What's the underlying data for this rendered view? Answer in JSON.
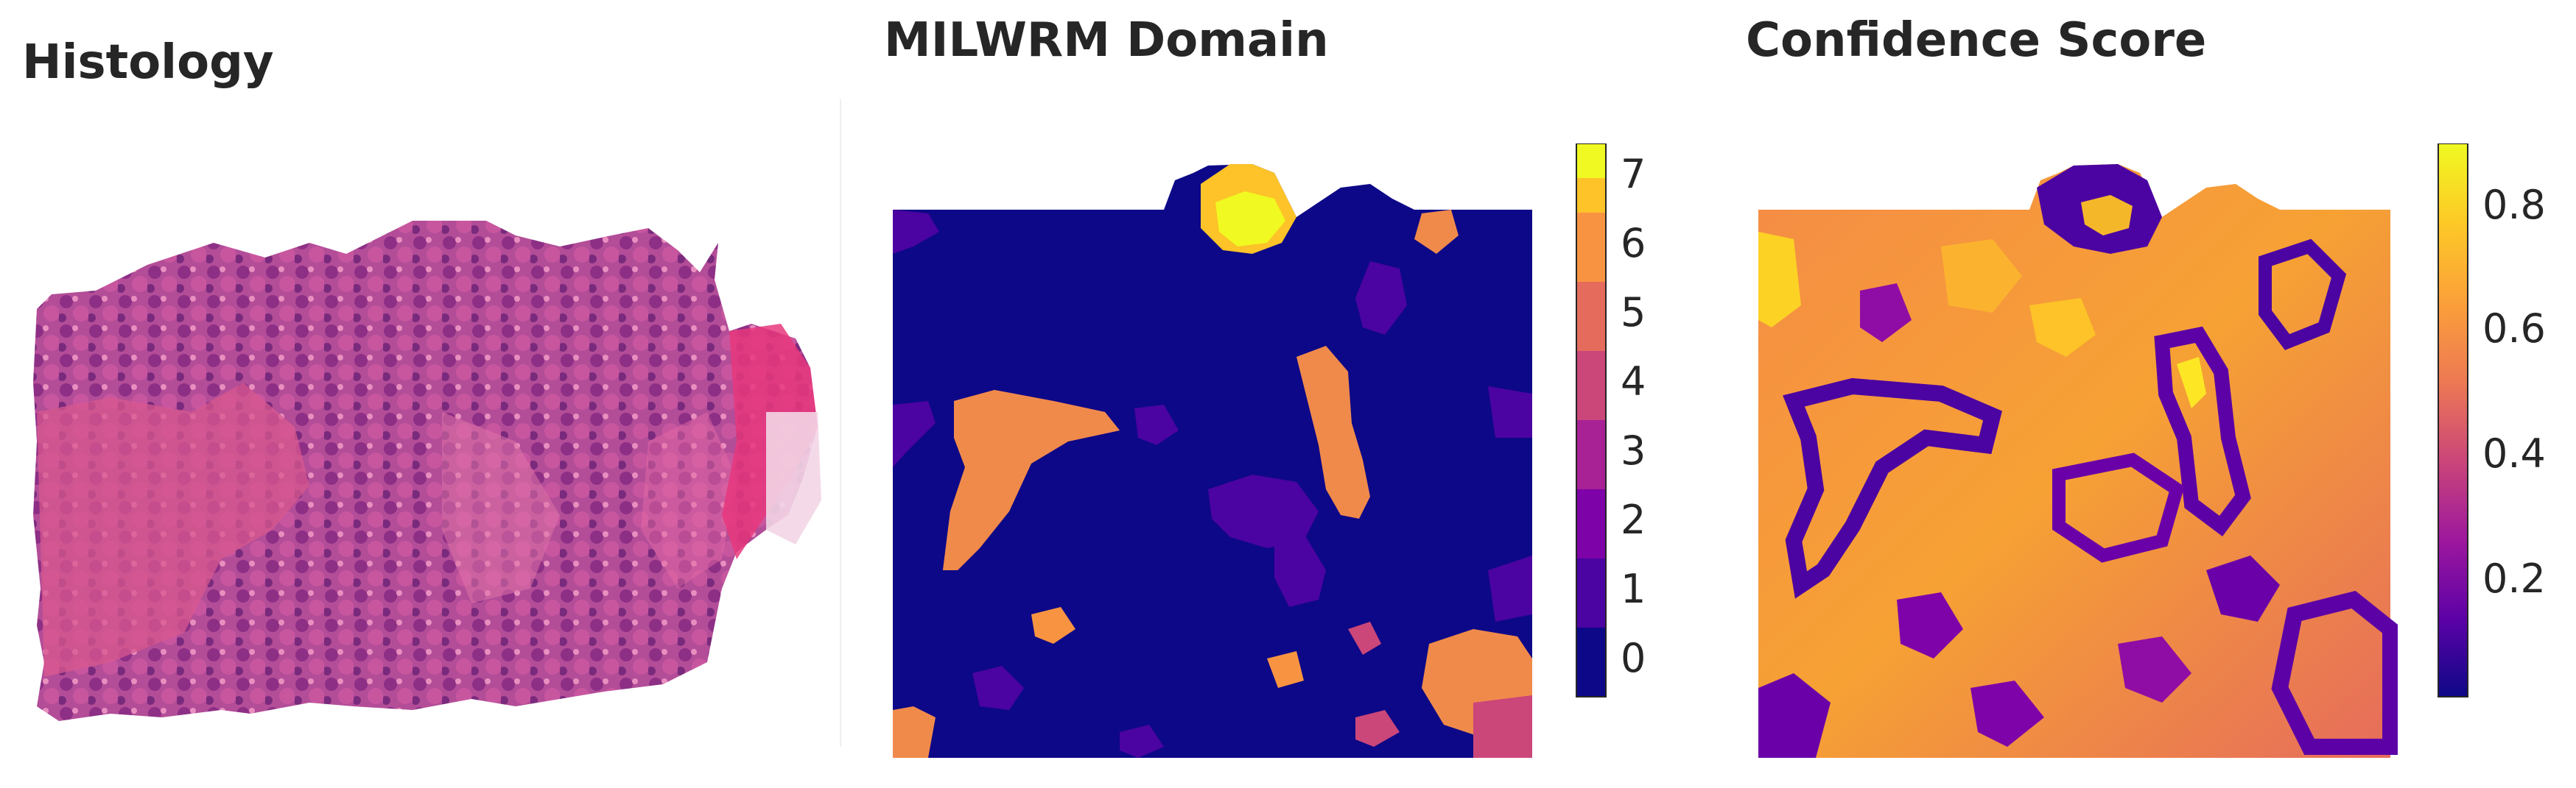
{
  "titles": {
    "histology": "Histology",
    "domain": "MILWRM Domain",
    "confidence": "Confidence Score"
  },
  "domain_colorbar": {
    "ticks": [
      "0",
      "1",
      "2",
      "3",
      "4",
      "5",
      "6",
      "7"
    ],
    "colors": [
      "#0d0887",
      "#4b03a1",
      "#7d03a8",
      "#a82296",
      "#cb4679",
      "#e56b5d",
      "#f89441",
      "#fdc328",
      "#f0f921"
    ]
  },
  "confidence_colorbar": {
    "ticks": [
      "0.2",
      "0.4",
      "0.6",
      "0.8"
    ],
    "colormap": "plasma"
  },
  "colors": {
    "background": "#0d0887",
    "histology_pink": "#d0508c",
    "histology_purple": "#9a3a8c"
  }
}
